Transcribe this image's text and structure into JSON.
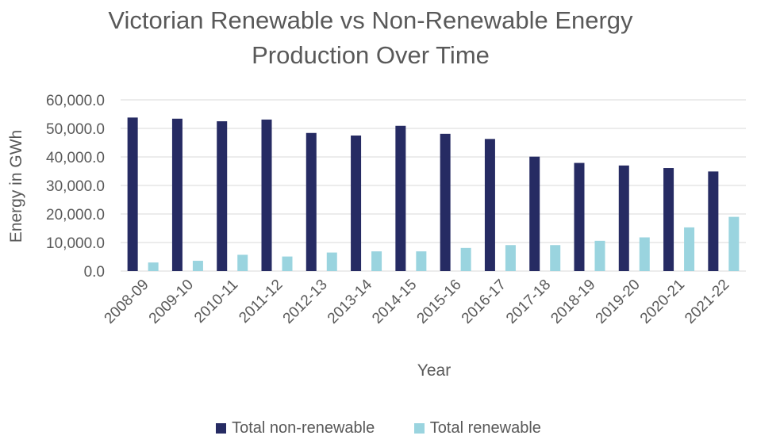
{
  "chart_data": {
    "type": "bar",
    "title_line1": "Victorian Renewable vs Non-Renewable Energy",
    "title_line2": "Production Over Time",
    "xlabel": "Year",
    "ylabel": "Energy in GWh",
    "ylim": [
      0,
      60000
    ],
    "yticks": [
      "0.0",
      "10,000.0",
      "20,000.0",
      "30,000.0",
      "40,000.0",
      "50,000.0",
      "60,000.0"
    ],
    "grid": true,
    "legend_position": "bottom",
    "categories": [
      "2008-09",
      "2009-10",
      "2010-11",
      "2011-12",
      "2012-13",
      "2013-14",
      "2014-15",
      "2015-16",
      "2016-17",
      "2017-18",
      "2018-19",
      "2019-20",
      "2020-21",
      "2021-22"
    ],
    "series": [
      {
        "name": "Total non-renewable",
        "color": "#262B63",
        "values": [
          53800,
          53400,
          52500,
          53100,
          48400,
          47500,
          50900,
          48100,
          46300,
          40100,
          37900,
          37000,
          36100,
          34900
        ]
      },
      {
        "name": "Total renewable",
        "color": "#9AD4DF",
        "values": [
          3000,
          3600,
          5700,
          5100,
          6500,
          6900,
          6900,
          8100,
          9100,
          9100,
          10600,
          11800,
          15300,
          19000
        ]
      }
    ]
  }
}
